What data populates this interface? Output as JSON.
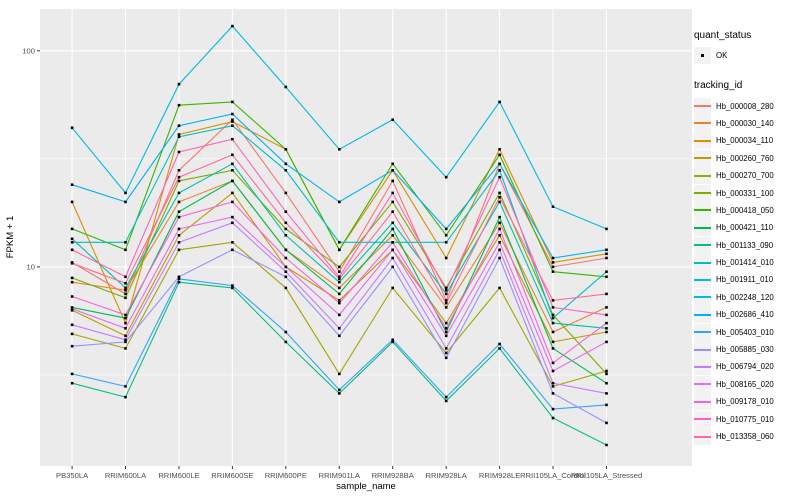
{
  "figure": {
    "panel_bg": "#EBEBEB",
    "grid_color": "#FFFFFF",
    "tick_color": "#333333",
    "tick_label_color": "#4D4D4D",
    "point_color": "#000000",
    "legend_key_bg": "#F2F2F2"
  },
  "axes": {
    "x_title": "sample_name",
    "y_title": "FPKM + 1",
    "y_ticks": [
      10,
      100
    ],
    "y_tick_labels": [
      "10",
      "100"
    ],
    "y_minor": [
      3.1623,
      31.623
    ]
  },
  "legend": {
    "position": "right",
    "quant_status": {
      "title": "quant_status",
      "items": [
        {
          "label": "OK",
          "symbol": "point"
        }
      ]
    },
    "tracking_id": {
      "title": "tracking_id"
    }
  },
  "chart_data": {
    "type": "line",
    "title": "",
    "xlabel": "sample_name",
    "ylabel": "FPKM + 1",
    "y_scale": "log10",
    "ylim": [
      1.2,
      156
    ],
    "grid": true,
    "legend_position": "right",
    "point_shape": "small-black-square",
    "categories": [
      "PB350LA",
      "RRIM600LA",
      "RRIM600LE",
      "RRIM600SE",
      "RRIM600PE",
      "RRIM901LA",
      "RRIM928BA",
      "RRIM928LA",
      "RRIM928LE",
      "RRII105LA_Control",
      "RRII105LA_Stressed"
    ],
    "quant_status_all": "OK",
    "series": [
      {
        "name": "Hb_000008_280",
        "color": "#F8766D",
        "values": [
          10.5,
          7.5,
          28,
          48,
          22,
          9.5,
          25,
          7.0,
          30,
          10.0,
          11.0
        ]
      },
      {
        "name": "Hb_000030_140",
        "color": "#EA8331",
        "values": [
          8.5,
          7.8,
          20,
          25,
          12,
          8.0,
          14,
          6.5,
          16,
          5.0,
          6.5
        ]
      },
      {
        "name": "Hb_000034_110",
        "color": "#D89000",
        "values": [
          20,
          5.5,
          41,
          47,
          35,
          12,
          28,
          11,
          35,
          10.5,
          11.5
        ]
      },
      {
        "name": "Hb_000260_760",
        "color": "#C09B00",
        "values": [
          6.3,
          4.8,
          14,
          22,
          10,
          7.0,
          12,
          5.5,
          14,
          4.5,
          5.0
        ]
      },
      {
        "name": "Hb_000270_700",
        "color": "#A3A500",
        "values": [
          4.9,
          4.2,
          12,
          13,
          8.0,
          3.2,
          8.0,
          4.0,
          8.0,
          2.8,
          3.3
        ]
      },
      {
        "name": "Hb_000331_100",
        "color": "#7CAE00",
        "values": [
          8.9,
          7.2,
          25,
          28,
          15,
          10,
          20,
          8.0,
          22,
          6.0,
          3.2
        ]
      },
      {
        "name": "Hb_000418_050",
        "color": "#39B600",
        "values": [
          15,
          12,
          56,
          58,
          35,
          12,
          30,
          14,
          33,
          9.5,
          9.0
        ]
      },
      {
        "name": "Hb_000421_110",
        "color": "#00BB4E",
        "values": [
          6.5,
          5.8,
          18,
          25,
          12,
          7.5,
          15,
          5.0,
          17,
          4.2,
          2.9
        ]
      },
      {
        "name": "Hb_001133_090",
        "color": "#00BF7D",
        "values": [
          2.9,
          2.5,
          8.5,
          8.0,
          4.5,
          2.6,
          4.5,
          2.4,
          4.2,
          2.0,
          1.5
        ]
      },
      {
        "name": "Hb_001414_010",
        "color": "#00C1A3",
        "values": [
          13.5,
          8.0,
          22,
          30,
          14,
          8.5,
          16,
          7.5,
          20,
          5.5,
          5.2
        ]
      },
      {
        "name": "Hb_001911_010",
        "color": "#00BFC4",
        "values": [
          13,
          13,
          40,
          45,
          28,
          13,
          13,
          13,
          28,
          5.8,
          9.5
        ]
      },
      {
        "name": "Hb_002248_120",
        "color": "#00BAE0",
        "values": [
          44,
          22,
          70,
          130,
          68,
          35,
          48,
          26,
          58,
          19,
          15
        ]
      },
      {
        "name": "Hb_002686_410",
        "color": "#00B0F6",
        "values": [
          24,
          20,
          45,
          51,
          30,
          20,
          28,
          15,
          30,
          11,
          12
        ]
      },
      {
        "name": "Hb_005403_010",
        "color": "#35A2FF",
        "values": [
          3.2,
          2.8,
          8.8,
          8.2,
          5.0,
          2.7,
          4.6,
          2.5,
          4.4,
          2.2,
          2.3
        ]
      },
      {
        "name": "Hb_005885_030",
        "color": "#9590FF",
        "values": [
          4.3,
          4.5,
          9.0,
          12,
          9.0,
          4.8,
          10,
          3.8,
          11,
          2.6,
          1.9
        ]
      },
      {
        "name": "Hb_006794_020",
        "color": "#C77CFF",
        "values": [
          5.4,
          4.6,
          13,
          16,
          9.5,
          5.2,
          11,
          4.2,
          12,
          2.9,
          2.6
        ]
      },
      {
        "name": "Hb_008165_020",
        "color": "#E76BF3",
        "values": [
          6.4,
          5.2,
          15,
          17,
          10,
          6.0,
          12,
          4.8,
          13,
          3.3,
          4.5
        ]
      },
      {
        "name": "Hb_009178_010",
        "color": "#FA62DB",
        "values": [
          7.3,
          6.0,
          17,
          20,
          11,
          6.8,
          13,
          5.2,
          15,
          3.6,
          5.5
        ]
      },
      {
        "name": "Hb_010775_010",
        "color": "#FF62BC",
        "values": [
          12,
          9.0,
          34,
          39,
          18,
          9.0,
          22,
          7.8,
          26,
          6.5,
          6.0
        ]
      },
      {
        "name": "Hb_013358_060",
        "color": "#FF6A98",
        "values": [
          10.4,
          8.4,
          26,
          33,
          16,
          8.8,
          18,
          6.8,
          21,
          7.0,
          7.5
        ]
      }
    ]
  }
}
